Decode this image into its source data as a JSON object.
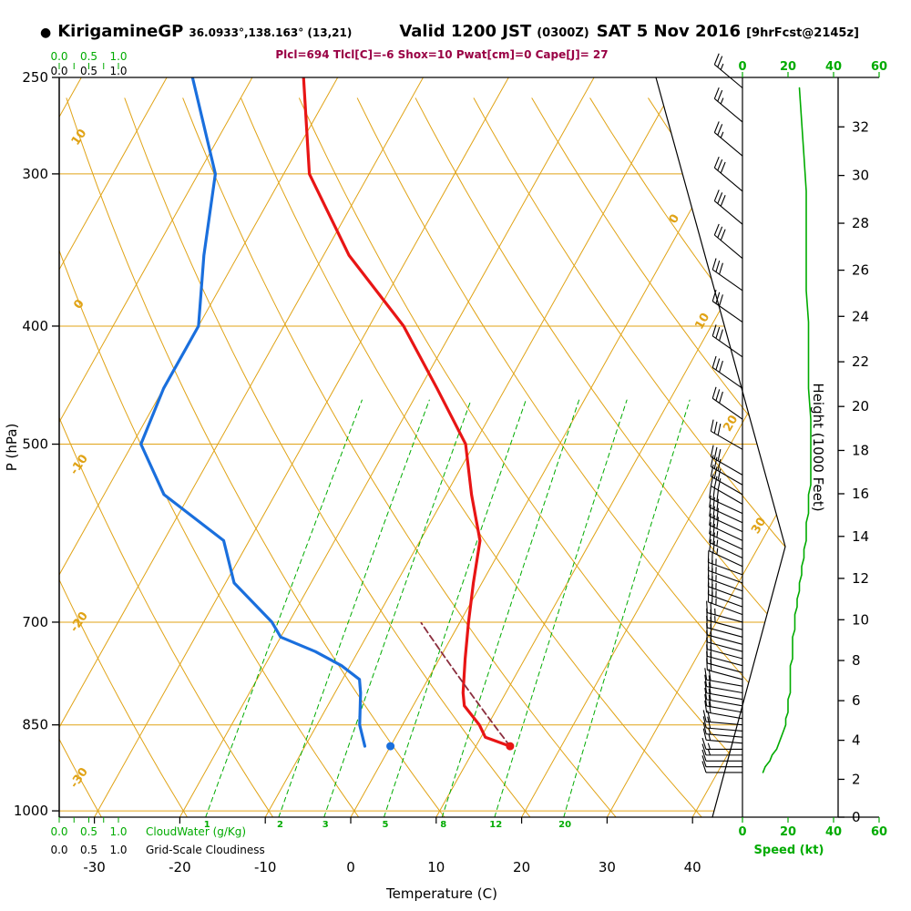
{
  "header": {
    "bullet": "●",
    "station": "KirigamineGP",
    "coords": "36.0933°,138.163° (13,21)",
    "valid_big1": "Valid 1200 JST",
    "valid_small1": "(0300Z)",
    "valid_big2": "SAT 5 Nov 2016",
    "valid_small2": "[9hrFcst@2145z]",
    "params": "Plcl=694 Tlcl[C]=-6 Shox=10 Pwat[cm]=0 Cape[J]= 27"
  },
  "axes": {
    "pressure_label": "P (hPa)",
    "pressure_ticks": [
      250,
      300,
      400,
      500,
      700,
      850,
      1000
    ],
    "temp_label": "Temperature (C)",
    "temp_ticks": [
      -30,
      -20,
      -10,
      0,
      10,
      20,
      30,
      40
    ],
    "height_label": "Height (1000 Feet)",
    "height_ticks": [
      0,
      2,
      4,
      6,
      8,
      10,
      12,
      14,
      16,
      18,
      20,
      22,
      24,
      26,
      28,
      30,
      32
    ],
    "speed_label": "Speed (kt)",
    "speed_ticks": [
      0,
      20,
      40,
      60
    ],
    "cloudwater_label": "CloudWater (g/Kg)",
    "cloudwater_ticks": [
      "0.0",
      "0.5",
      "1.0"
    ],
    "cloudiness_label": "Grid-Scale Cloudiness",
    "cloudiness_ticks": [
      "0.0",
      "0.5",
      "1.0"
    ],
    "adiabat_labels": [
      10,
      0,
      -10,
      -20,
      -30
    ],
    "isotherm_labels": [
      0,
      10,
      20,
      30
    ],
    "mixing_ratio_labels": [
      1,
      2,
      3,
      5,
      8,
      12,
      20
    ]
  },
  "chart_data": {
    "type": "skewt-logp",
    "title": "KirigamineGP sounding, Valid 1200 JST (0300Z) SAT 5 Nov 2016, 9hr Fcst @2145z",
    "pressure_range": [
      250,
      1012
    ],
    "temp_axis_range": [
      -30,
      40
    ],
    "skew": 0.56,
    "grid_on": true,
    "indices": {
      "Plcl": 694,
      "Tlcl_C": -6,
      "Shox": 10,
      "Pwat_cm": 0,
      "Cape_J": 27
    },
    "surface": {
      "p": 885,
      "t": 14,
      "td": 0
    },
    "lcl": {
      "p": 694,
      "t": -6
    },
    "temperature_profile": [
      [
        885,
        14
      ],
      [
        870,
        10.5
      ],
      [
        850,
        9
      ],
      [
        820,
        6
      ],
      [
        800,
        5
      ],
      [
        750,
        3
      ],
      [
        700,
        1
      ],
      [
        650,
        -1
      ],
      [
        600,
        -3
      ],
      [
        550,
        -7
      ],
      [
        500,
        -11
      ],
      [
        450,
        -18
      ],
      [
        400,
        -26
      ],
      [
        350,
        -37
      ],
      [
        300,
        -47
      ],
      [
        250,
        -54
      ]
    ],
    "dewpoint_profile": [
      [
        885,
        -3
      ],
      [
        850,
        -5
      ],
      [
        800,
        -7
      ],
      [
        780,
        -8
      ],
      [
        760,
        -11
      ],
      [
        740,
        -15
      ],
      [
        720,
        -20
      ],
      [
        700,
        -22
      ],
      [
        650,
        -29
      ],
      [
        600,
        -33
      ],
      [
        550,
        -43
      ],
      [
        500,
        -49
      ],
      [
        450,
        -50
      ],
      [
        400,
        -50
      ],
      [
        350,
        -54
      ],
      [
        300,
        -58
      ],
      [
        250,
        -67
      ]
    ],
    "wind_profile": [
      [
        255,
        25,
        310
      ],
      [
        272,
        26,
        310
      ],
      [
        290,
        27,
        310
      ],
      [
        310,
        28,
        310
      ],
      [
        330,
        28,
        310
      ],
      [
        352,
        28,
        310
      ],
      [
        374,
        28,
        305
      ],
      [
        397,
        29,
        305
      ],
      [
        424,
        29,
        305
      ],
      [
        450,
        29,
        305
      ],
      [
        477,
        30,
        305
      ],
      [
        505,
        30,
        300
      ],
      [
        530,
        30,
        300
      ],
      [
        540,
        30,
        300
      ],
      [
        550,
        29,
        300
      ],
      [
        560,
        29,
        300
      ],
      [
        570,
        29,
        295
      ],
      [
        580,
        28,
        295
      ],
      [
        590,
        28,
        295
      ],
      [
        600,
        28,
        295
      ],
      [
        610,
        27,
        295
      ],
      [
        620,
        27,
        295
      ],
      [
        630,
        26,
        295
      ],
      [
        640,
        26,
        290
      ],
      [
        650,
        25,
        290
      ],
      [
        660,
        25,
        290
      ],
      [
        670,
        24,
        290
      ],
      [
        680,
        24,
        290
      ],
      [
        690,
        23,
        290
      ],
      [
        700,
        23,
        285
      ],
      [
        710,
        23,
        285
      ],
      [
        720,
        22,
        285
      ],
      [
        730,
        22,
        285
      ],
      [
        740,
        22,
        285
      ],
      [
        750,
        22,
        285
      ],
      [
        760,
        21,
        285
      ],
      [
        770,
        21,
        285
      ],
      [
        780,
        21,
        285
      ],
      [
        790,
        21,
        280
      ],
      [
        800,
        21,
        280
      ],
      [
        810,
        20,
        280
      ],
      [
        820,
        20,
        280
      ],
      [
        830,
        20,
        280
      ],
      [
        840,
        19,
        280
      ],
      [
        850,
        19,
        275
      ],
      [
        860,
        18,
        275
      ],
      [
        870,
        17,
        275
      ],
      [
        880,
        16,
        275
      ],
      [
        890,
        15,
        270
      ],
      [
        900,
        13,
        270
      ],
      [
        910,
        12,
        270
      ],
      [
        920,
        10,
        270
      ],
      [
        930,
        9,
        270
      ]
    ],
    "colors": {
      "grid": "#e0a316",
      "green": "#00ab00",
      "temperature": "#e81515",
      "dewpoint": "#1a6fdd",
      "parcel": "#8b2e3e",
      "params_text": "#990044",
      "frame": "#000000"
    }
  }
}
